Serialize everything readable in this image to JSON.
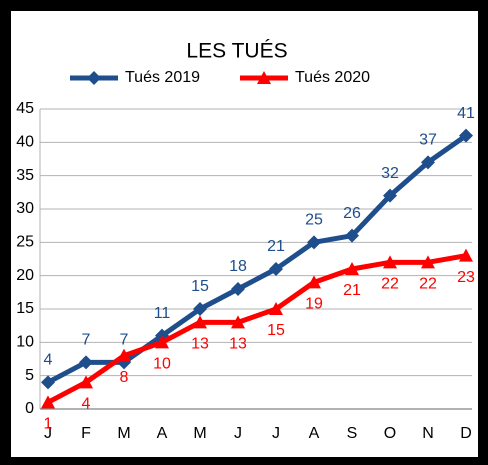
{
  "chart_data": {
    "type": "line",
    "title": "LES TUÉS",
    "categories": [
      "J",
      "F",
      "M",
      "A",
      "M",
      "J",
      "J",
      "A",
      "S",
      "O",
      "N",
      "D"
    ],
    "series": [
      {
        "name": "Tués 2019",
        "color": "#1f4e8c",
        "marker": "diamond",
        "values": [
          4,
          7,
          7,
          11,
          15,
          18,
          21,
          25,
          26,
          32,
          37,
          41
        ]
      },
      {
        "name": "Tués 2020",
        "color": "#ff0000",
        "marker": "triangle",
        "values": [
          1,
          4,
          8,
          10,
          13,
          13,
          15,
          19,
          21,
          22,
          22,
          23
        ]
      }
    ],
    "ylim": [
      0,
      45
    ],
    "yticks": [
      0,
      5,
      10,
      15,
      20,
      25,
      30,
      35,
      40,
      45
    ],
    "grid": true,
    "legend": "top"
  }
}
